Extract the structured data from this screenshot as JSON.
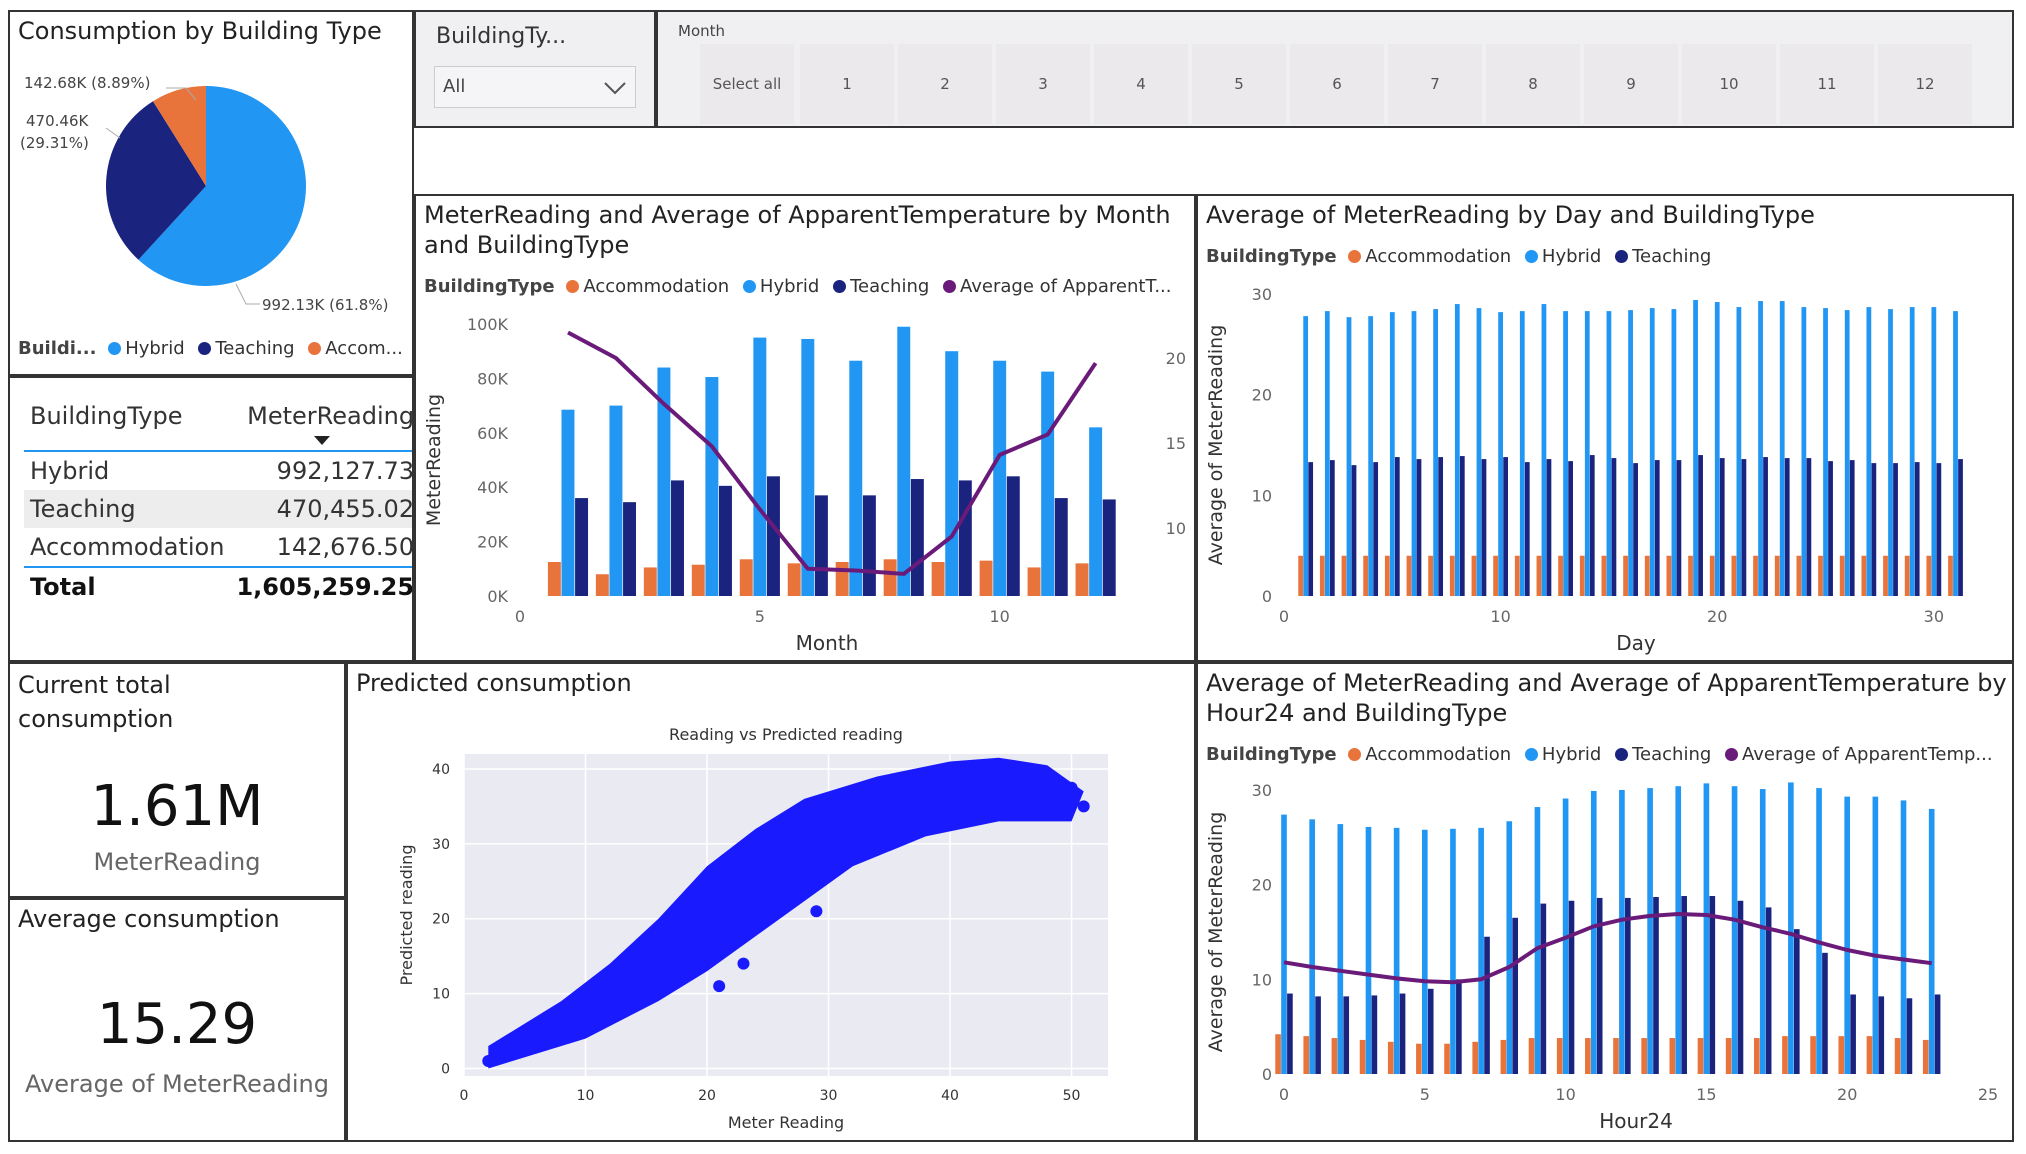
{
  "colors": {
    "hybrid": "#2196f3",
    "teaching": "#1a237e",
    "accommodation": "#e8743b",
    "temperature": "#6a1b7a",
    "scatter": "#1a1aff"
  },
  "pie_panel": {
    "title": "Consumption by Building Type",
    "labels": {
      "accom": "142.68K (8.89%)",
      "teach1": "470.46K",
      "teach2": "(29.31%)",
      "hybrid": "992.13K (61.8%)"
    },
    "legend_title": "Buildi...",
    "legend": [
      "Hybrid",
      "Teaching",
      "Accom..."
    ]
  },
  "slicer_building": {
    "title": "BuildingTy...",
    "value": "All"
  },
  "slicer_month": {
    "title": "Month",
    "options": [
      "Select all",
      "1",
      "2",
      "3",
      "4",
      "5",
      "6",
      "7",
      "8",
      "9",
      "10",
      "11",
      "12"
    ]
  },
  "matrix": {
    "headers": [
      "BuildingType",
      "MeterReading"
    ],
    "rows": [
      {
        "type": "Hybrid",
        "value": "992,127.73"
      },
      {
        "type": "Teaching",
        "value": "470,455.02"
      },
      {
        "type": "Accommodation",
        "value": "142,676.50"
      }
    ],
    "total_label": "Total",
    "total_value": "1,605,259.25"
  },
  "card_total": {
    "title": "Current total consumption",
    "value": "1.61M",
    "label": "MeterReading"
  },
  "card_avg": {
    "title": "Average consumption",
    "value": "15.29",
    "label": "Average of MeterReading"
  },
  "month_chart": {
    "title_l1": "MeterReading and Average of ApparentTemperature by Month",
    "title_l2": "and BuildingType",
    "legend_title": "BuildingType",
    "legend": [
      "Accommodation",
      "Hybrid",
      "Teaching",
      "Average of ApparentT..."
    ],
    "xlabel": "Month",
    "ylabel": "MeterReading",
    "y_ticks": [
      "0K",
      "20K",
      "40K",
      "60K",
      "80K",
      "100K"
    ],
    "y2_ticks": [
      "10",
      "15",
      "20"
    ],
    "x_ticks": [
      "0",
      "5",
      "10"
    ]
  },
  "day_chart": {
    "title": "Average of MeterReading by Day and BuildingType",
    "legend_title": "BuildingType",
    "legend": [
      "Accommodation",
      "Hybrid",
      "Teaching"
    ],
    "xlabel": "Day",
    "ylabel": "Average of MeterReading",
    "y_ticks": [
      "0",
      "10",
      "20",
      "30"
    ],
    "x_ticks": [
      "0",
      "10",
      "20",
      "30"
    ]
  },
  "scatter_panel": {
    "title": "Predicted consumption",
    "plot_title": "Reading vs Predicted reading",
    "xlabel": "Meter Reading",
    "ylabel": "Predicted reading",
    "x_ticks": [
      "0",
      "10",
      "20",
      "30",
      "40",
      "50"
    ],
    "y_ticks": [
      "0",
      "10",
      "20",
      "30",
      "40"
    ]
  },
  "hour_chart": {
    "title_l1": "Average of MeterReading and Average of ApparentTemperature by",
    "title_l2": "Hour24 and BuildingType",
    "legend_title": "BuildingType",
    "legend": [
      "Accommodation",
      "Hybrid",
      "Teaching",
      "Average of ApparentTemp..."
    ],
    "xlabel": "Hour24",
    "ylabel": "Average of MeterReading",
    "y_ticks": [
      "0",
      "10",
      "20",
      "30"
    ],
    "x_ticks": [
      "0",
      "5",
      "10",
      "15",
      "20",
      "25"
    ]
  },
  "chart_data": [
    {
      "type": "pie",
      "title": "Consumption by Building Type",
      "categories": [
        "Hybrid",
        "Teaching",
        "Accommodation"
      ],
      "values": [
        992130,
        470460,
        142680
      ]
    },
    {
      "type": "bar",
      "title": "MeterReading and Average of ApparentTemperature by Month and BuildingType",
      "categories": [
        1,
        2,
        3,
        4,
        5,
        6,
        7,
        8,
        9,
        10,
        11,
        12
      ],
      "series": [
        {
          "name": "Accommodation",
          "values": [
            12500,
            8000,
            10500,
            11500,
            13500,
            12000,
            12500,
            13500,
            12500,
            13000,
            10500,
            12000
          ]
        },
        {
          "name": "Hybrid",
          "values": [
            68500,
            70000,
            84000,
            80500,
            95000,
            94500,
            86500,
            99000,
            90000,
            86500,
            82500,
            62000
          ]
        },
        {
          "name": "Teaching",
          "values": [
            36000,
            34500,
            42500,
            40500,
            44000,
            37000,
            37000,
            43000,
            42500,
            44000,
            36000,
            35500
          ]
        },
        {
          "name": "Average of ApparentT...",
          "axis": "secondary",
          "values": [
            21.5,
            20.0,
            17.3,
            14.8,
            11.1,
            7.6,
            7.5,
            7.3,
            9.5,
            14.3,
            15.5,
            19.7
          ]
        }
      ],
      "xlabel": "Month",
      "ylabel": "MeterReading",
      "ylim": [
        0,
        100000
      ],
      "y2lim": [
        6,
        22
      ]
    },
    {
      "type": "bar",
      "title": "Average of MeterReading by Day and BuildingType",
      "categories": [
        1,
        2,
        3,
        4,
        5,
        6,
        7,
        8,
        9,
        10,
        11,
        12,
        13,
        14,
        15,
        16,
        17,
        18,
        19,
        20,
        21,
        22,
        23,
        24,
        25,
        26,
        27,
        28,
        29,
        30,
        31
      ],
      "series": [
        {
          "name": "Accommodation",
          "values": [
            4,
            4,
            4,
            4,
            4,
            4,
            4,
            4,
            4,
            4,
            4,
            4,
            4,
            4,
            4,
            4,
            4,
            4,
            4,
            4,
            4,
            4,
            4,
            4,
            4,
            4,
            4,
            4,
            4,
            4,
            4
          ]
        },
        {
          "name": "Hybrid",
          "values": [
            27.8,
            28.3,
            27.7,
            27.8,
            28.2,
            28.3,
            28.5,
            29.0,
            28.6,
            28.2,
            28.3,
            29.0,
            28.3,
            28.3,
            28.3,
            28.4,
            28.6,
            28.5,
            29.4,
            29.2,
            28.7,
            29.3,
            29.3,
            28.7,
            28.6,
            28.4,
            28.7,
            28.5,
            28.7,
            28.7,
            28.3
          ]
        },
        {
          "name": "Teaching",
          "values": [
            13.3,
            13.5,
            13.0,
            13.3,
            13.8,
            13.6,
            13.8,
            13.9,
            13.6,
            13.8,
            13.3,
            13.6,
            13.4,
            14.0,
            13.7,
            13.2,
            13.5,
            13.5,
            14.0,
            13.7,
            13.6,
            13.8,
            13.7,
            13.7,
            13.4,
            13.5,
            13.2,
            13.2,
            13.3,
            13.2,
            13.6
          ]
        }
      ],
      "xlabel": "Day",
      "ylabel": "Average of MeterReading",
      "ylim": [
        0,
        30
      ]
    },
    {
      "type": "scatter",
      "title": "Reading vs Predicted reading",
      "xlabel": "Meter Reading",
      "ylabel": "Predicted reading",
      "xlim": [
        0,
        53
      ],
      "ylim": [
        -1,
        42
      ],
      "x": [
        2,
        3,
        4,
        6,
        8,
        10,
        12,
        14,
        16,
        18,
        20,
        22,
        24,
        26,
        28,
        30,
        32,
        34,
        36,
        38,
        40,
        42,
        44,
        46,
        48,
        50,
        51,
        23,
        21,
        29
      ],
      "y": [
        1,
        1.5,
        3,
        4,
        5,
        7,
        9,
        11,
        14,
        16,
        18,
        21,
        24,
        27,
        29,
        31,
        33,
        34,
        35,
        36,
        37,
        37,
        38,
        38,
        39,
        37.5,
        35,
        14,
        11,
        21
      ]
    },
    {
      "type": "bar",
      "title": "Average of MeterReading and Average of ApparentTemperature by Hour24 and BuildingType",
      "categories": [
        0,
        1,
        2,
        3,
        4,
        5,
        6,
        7,
        8,
        9,
        10,
        11,
        12,
        13,
        14,
        15,
        16,
        17,
        18,
        19,
        20,
        21,
        22,
        23
      ],
      "series": [
        {
          "name": "Accommodation",
          "values": [
            4.2,
            4.0,
            3.8,
            3.6,
            3.4,
            3.2,
            3.2,
            3.4,
            3.6,
            3.8,
            3.8,
            3.8,
            3.8,
            3.8,
            3.8,
            3.8,
            3.8,
            3.8,
            4.0,
            4.0,
            4.0,
            4.0,
            3.8,
            3.6
          ]
        },
        {
          "name": "Hybrid",
          "values": [
            27.4,
            26.9,
            26.4,
            26.1,
            26.0,
            25.8,
            25.9,
            26.0,
            26.7,
            28.2,
            29.1,
            29.9,
            30.0,
            30.2,
            30.4,
            30.7,
            30.4,
            30.1,
            30.8,
            30.2,
            29.3,
            29.3,
            28.9,
            28.0
          ]
        },
        {
          "name": "Teaching",
          "values": [
            8.5,
            8.2,
            8.2,
            8.3,
            8.5,
            9.0,
            10.0,
            14.5,
            16.5,
            18.0,
            18.3,
            18.6,
            18.6,
            18.7,
            18.8,
            18.8,
            18.3,
            17.6,
            15.3,
            12.8,
            8.4,
            8.2,
            8.0,
            8.4
          ]
        },
        {
          "name": "Average of ApparentTemp...",
          "values": [
            11.8,
            11.3,
            10.9,
            10.5,
            10.1,
            9.8,
            9.7,
            10.0,
            11.3,
            13.3,
            14.4,
            15.6,
            16.3,
            16.7,
            16.9,
            16.8,
            16.3,
            15.5,
            14.8,
            13.9,
            13.1,
            12.5,
            12.1,
            11.7
          ]
        }
      ],
      "xlabel": "Hour24",
      "ylabel": "Average of MeterReading",
      "ylim": [
        0,
        30
      ]
    }
  ]
}
